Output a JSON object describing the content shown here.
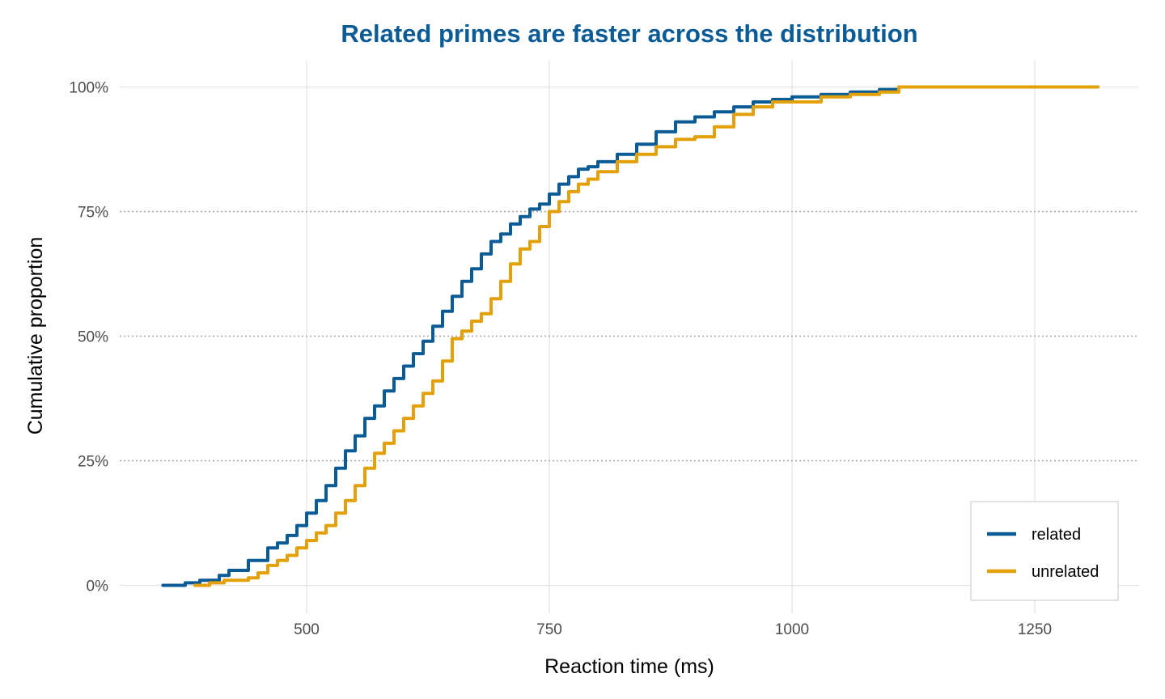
{
  "chart_data": {
    "type": "line",
    "title": "Related primes are faster across the distribution",
    "xlabel": "Reaction time (ms)",
    "ylabel": "Cumulative proportion",
    "xlim": [
      340,
      1330
    ],
    "ylim": [
      0,
      1
    ],
    "x_ticks": [
      500,
      750,
      1000,
      1250
    ],
    "x_tick_labels": [
      "500",
      "750",
      "1000",
      "1250"
    ],
    "y_ticks": [
      0,
      0.25,
      0.5,
      0.75,
      1.0
    ],
    "y_tick_labels": [
      "0%",
      "25%",
      "50%",
      "75%",
      "100%"
    ],
    "vertical_grid": "solid light gray at x ticks",
    "horizontal_grid": "dotted gray at 25%, 50%, 75%; solid light gray at 0% and 100%",
    "legend_position": "bottom-right",
    "title_color": "#0b5c96",
    "series": [
      {
        "name": "related",
        "color": "#0b5c96",
        "x": [
          352,
          375,
          390,
          410,
          420,
          440,
          460,
          470,
          480,
          490,
          500,
          510,
          520,
          530,
          540,
          550,
          560,
          570,
          580,
          590,
          600,
          610,
          620,
          630,
          640,
          650,
          660,
          670,
          680,
          690,
          700,
          710,
          720,
          730,
          740,
          750,
          760,
          770,
          780,
          790,
          800,
          820,
          840,
          860,
          880,
          900,
          920,
          940,
          960,
          980,
          1000,
          1030,
          1060,
          1090,
          1110,
          1150,
          1200,
          1250,
          1315
        ],
        "values": [
          0.0,
          0.005,
          0.01,
          0.02,
          0.03,
          0.05,
          0.075,
          0.085,
          0.1,
          0.12,
          0.145,
          0.17,
          0.2,
          0.235,
          0.27,
          0.3,
          0.335,
          0.36,
          0.39,
          0.415,
          0.44,
          0.465,
          0.49,
          0.52,
          0.55,
          0.58,
          0.61,
          0.635,
          0.665,
          0.69,
          0.705,
          0.725,
          0.74,
          0.755,
          0.765,
          0.785,
          0.805,
          0.82,
          0.835,
          0.84,
          0.85,
          0.865,
          0.885,
          0.91,
          0.93,
          0.94,
          0.95,
          0.96,
          0.97,
          0.975,
          0.98,
          0.985,
          0.99,
          0.995,
          1.0,
          1.0,
          1.0,
          1.0,
          1.0
        ]
      },
      {
        "name": "unrelated",
        "color": "#e3a008",
        "x": [
          385,
          400,
          415,
          430,
          440,
          450,
          460,
          470,
          480,
          490,
          500,
          510,
          520,
          530,
          540,
          550,
          560,
          570,
          580,
          590,
          600,
          610,
          620,
          630,
          640,
          650,
          660,
          670,
          680,
          690,
          700,
          710,
          720,
          730,
          740,
          750,
          760,
          770,
          780,
          790,
          800,
          820,
          840,
          860,
          880,
          900,
          920,
          940,
          960,
          980,
          1000,
          1030,
          1060,
          1090,
          1110,
          1150,
          1200,
          1250,
          1315
        ],
        "values": [
          0.0,
          0.005,
          0.01,
          0.01,
          0.015,
          0.025,
          0.04,
          0.05,
          0.06,
          0.075,
          0.09,
          0.105,
          0.12,
          0.145,
          0.17,
          0.2,
          0.235,
          0.265,
          0.285,
          0.31,
          0.335,
          0.36,
          0.385,
          0.41,
          0.45,
          0.495,
          0.51,
          0.53,
          0.545,
          0.575,
          0.61,
          0.645,
          0.675,
          0.69,
          0.72,
          0.75,
          0.77,
          0.79,
          0.805,
          0.815,
          0.83,
          0.85,
          0.865,
          0.88,
          0.895,
          0.9,
          0.92,
          0.945,
          0.96,
          0.97,
          0.97,
          0.98,
          0.985,
          0.99,
          1.0,
          1.0,
          1.0,
          1.0,
          1.0
        ]
      }
    ]
  }
}
